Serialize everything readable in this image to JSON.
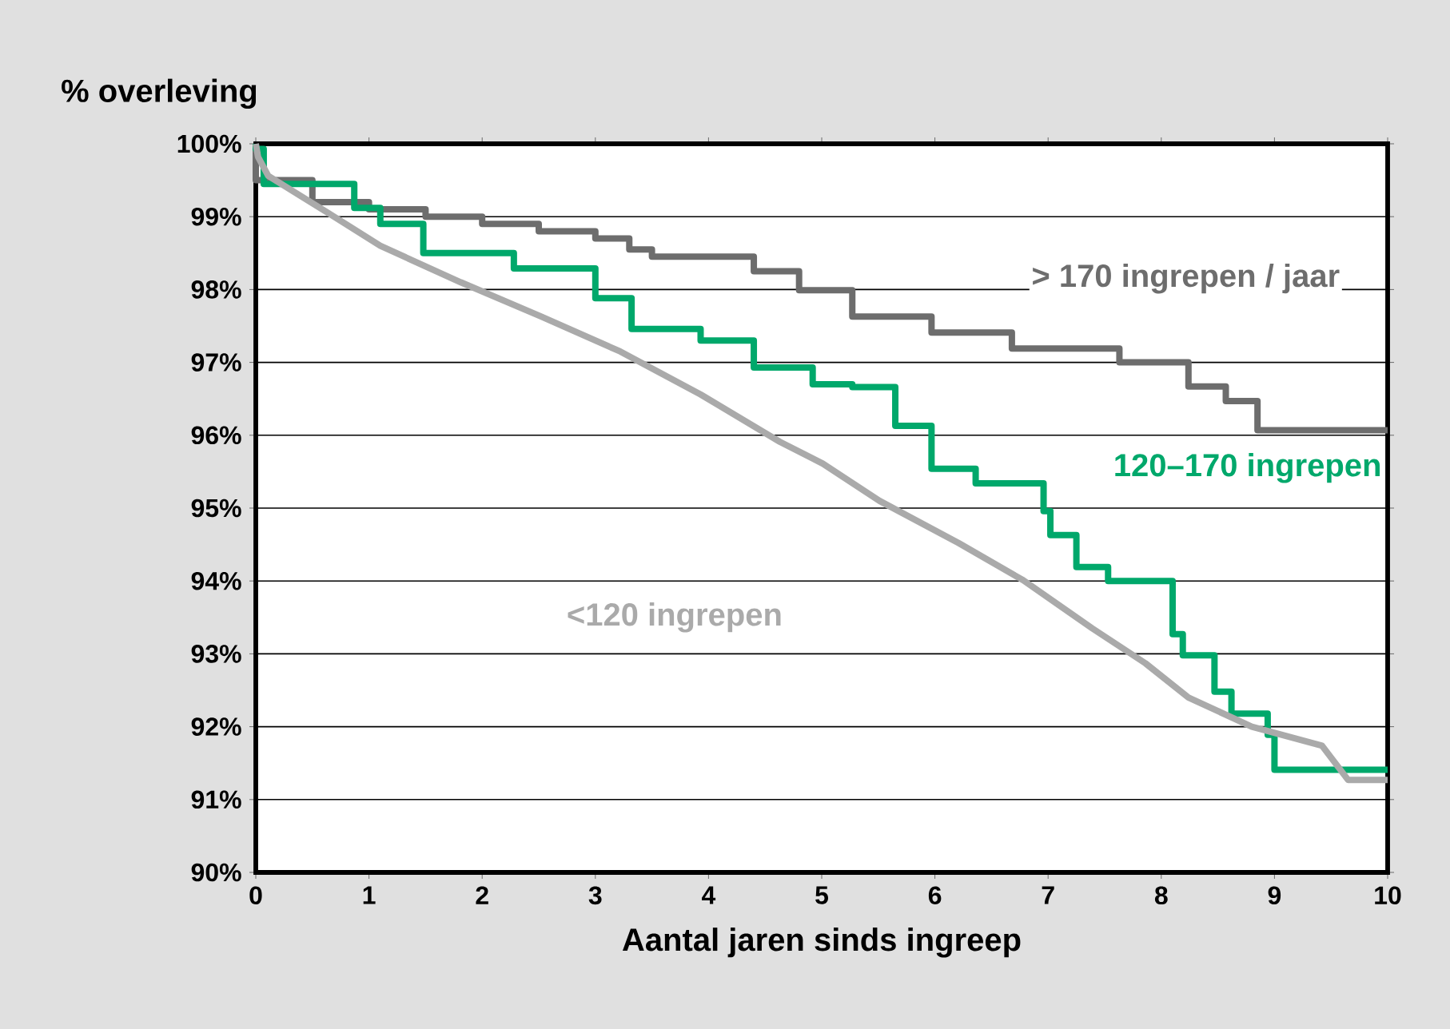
{
  "chart_data": {
    "type": "step",
    "xlabel": "Aantal jaren sinds ingreep",
    "ylabel": "% overleving",
    "xlim": [
      0,
      10
    ],
    "xticks": [
      0,
      1,
      2,
      3,
      4,
      5,
      6,
      7,
      8,
      9,
      10
    ],
    "ylim": [
      90,
      100
    ],
    "yticks": [
      {
        "value": 90,
        "label": "90%"
      },
      {
        "value": 91,
        "label": "91%"
      },
      {
        "value": 92,
        "label": "92%"
      },
      {
        "value": 93,
        "label": "93%"
      },
      {
        "value": 94,
        "label": "94%"
      },
      {
        "value": 95,
        "label": "95%"
      },
      {
        "value": 96,
        "label": "96%"
      },
      {
        "value": 97,
        "label": "97%"
      },
      {
        "value": 98,
        "label": "98%"
      },
      {
        "value": 99,
        "label": "99%"
      },
      {
        "value": 100,
        "label": "100%"
      }
    ],
    "grid": "y",
    "legend": false,
    "marker": "none",
    "line_style": "solid",
    "series": [
      {
        "name": "> 170 ingrepen / jaar",
        "color": "#6d6d6d",
        "x": [
          0,
          0.5,
          1,
          1.5,
          2,
          2.5,
          3,
          3.3,
          3.5,
          4.4,
          4.8,
          5.27,
          5.97,
          6.68,
          7.63,
          8.24,
          8.57,
          8.85,
          9.42,
          10
        ],
        "values": [
          100,
          99.5,
          99.2,
          99.1,
          99.0,
          98.9,
          98.8,
          98.7,
          98.55,
          98.45,
          98.25,
          97.99,
          97.63,
          97.41,
          97.19,
          97.0,
          96.67,
          96.47,
          96.07,
          96.07
        ]
      },
      {
        "name": "120–170 ingrepen",
        "color": "#00a86b",
        "x": [
          0,
          0.07,
          0.87,
          1.1,
          1.48,
          2.28,
          3.0,
          3.32,
          3.93,
          4.4,
          4.92,
          5.27,
          5.65,
          5.97,
          6.36,
          6.96,
          7.02,
          7.25,
          7.53,
          8.1,
          8.19,
          8.47,
          8.62,
          8.94,
          9.0,
          9.42,
          10
        ],
        "values": [
          100,
          99.93,
          99.45,
          99.12,
          98.9,
          98.5,
          98.29,
          97.88,
          97.46,
          97.3,
          96.93,
          96.7,
          96.66,
          96.13,
          95.54,
          95.34,
          94.96,
          94.63,
          94.19,
          94.0,
          93.27,
          92.98,
          92.48,
          92.18,
          91.89,
          91.41,
          91.41
        ]
      },
      {
        "name": "<120 ingrepen",
        "type": "line",
        "color": "#aaaaaa",
        "x": [
          0,
          0.02,
          0.11,
          0.64,
          1.1,
          1.81,
          2.52,
          3.22,
          3.93,
          4.63,
          5.01,
          5.51,
          6.21,
          6.78,
          7.39,
          7.86,
          8.24,
          8.8,
          9.42,
          9.65,
          10
        ],
        "values": [
          100,
          99.82,
          99.56,
          99.05,
          98.6,
          98.1,
          97.63,
          97.15,
          96.56,
          95.91,
          95.61,
          95.1,
          94.52,
          94.01,
          93.35,
          92.87,
          92.4,
          92.0,
          91.74,
          91.27,
          91.27
        ]
      }
    ]
  }
}
